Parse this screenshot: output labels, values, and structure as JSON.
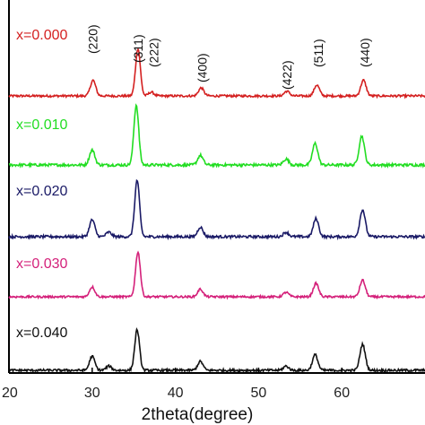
{
  "chart_data": {
    "type": "line",
    "title": "",
    "xlabel": "2theta(degree)",
    "ylabel": "",
    "xlim": [
      20,
      70
    ],
    "x_ticks": [
      20,
      30,
      40,
      50,
      60
    ],
    "grid": false,
    "legend": "inline-left",
    "series": [
      {
        "name": "x=0.000",
        "color": "#d42020",
        "peaks": [
          [
            30.1,
            0.33
          ],
          [
            35.5,
            1.0
          ],
          [
            37.1,
            0.08
          ],
          [
            43.1,
            0.17
          ],
          [
            53.4,
            0.1
          ],
          [
            57.0,
            0.23
          ],
          [
            62.6,
            0.33
          ]
        ]
      },
      {
        "name": "x=0.010",
        "color": "#22dd22",
        "peaks": [
          [
            30.0,
            0.25
          ],
          [
            35.3,
            1.0
          ],
          [
            43.0,
            0.16
          ],
          [
            53.3,
            0.1
          ],
          [
            56.8,
            0.36
          ],
          [
            62.4,
            0.48
          ]
        ]
      },
      {
        "name": "x=0.020",
        "color": "#1a1a66",
        "peaks": [
          [
            30.0,
            0.3
          ],
          [
            32.0,
            0.08
          ],
          [
            35.4,
            1.0
          ],
          [
            43.0,
            0.17
          ],
          [
            53.3,
            0.08
          ],
          [
            56.9,
            0.32
          ],
          [
            62.5,
            0.48
          ]
        ]
      },
      {
        "name": "x=0.030",
        "color": "#d4207a",
        "peaks": [
          [
            30.0,
            0.22
          ],
          [
            35.5,
            1.0
          ],
          [
            43.0,
            0.17
          ],
          [
            53.3,
            0.1
          ],
          [
            56.9,
            0.3
          ],
          [
            62.5,
            0.37
          ]
        ]
      },
      {
        "name": "x=0.040",
        "color": "#111111",
        "peaks": [
          [
            30.0,
            0.27
          ],
          [
            32.0,
            0.08
          ],
          [
            35.4,
            0.78
          ],
          [
            43.0,
            0.17
          ],
          [
            53.3,
            0.08
          ],
          [
            56.8,
            0.3
          ],
          [
            62.5,
            0.5
          ]
        ]
      }
    ],
    "annotations": [
      {
        "text": "(220)",
        "x": 30.1
      },
      {
        "text": "(311)",
        "x": 35.5
      },
      {
        "text": "(222)",
        "x": 37.4
      },
      {
        "text": "(400)",
        "x": 43.2
      },
      {
        "text": "(422)",
        "x": 53.4
      },
      {
        "text": "(511)",
        "x": 57.2
      },
      {
        "text": "(440)",
        "x": 62.8
      }
    ]
  }
}
